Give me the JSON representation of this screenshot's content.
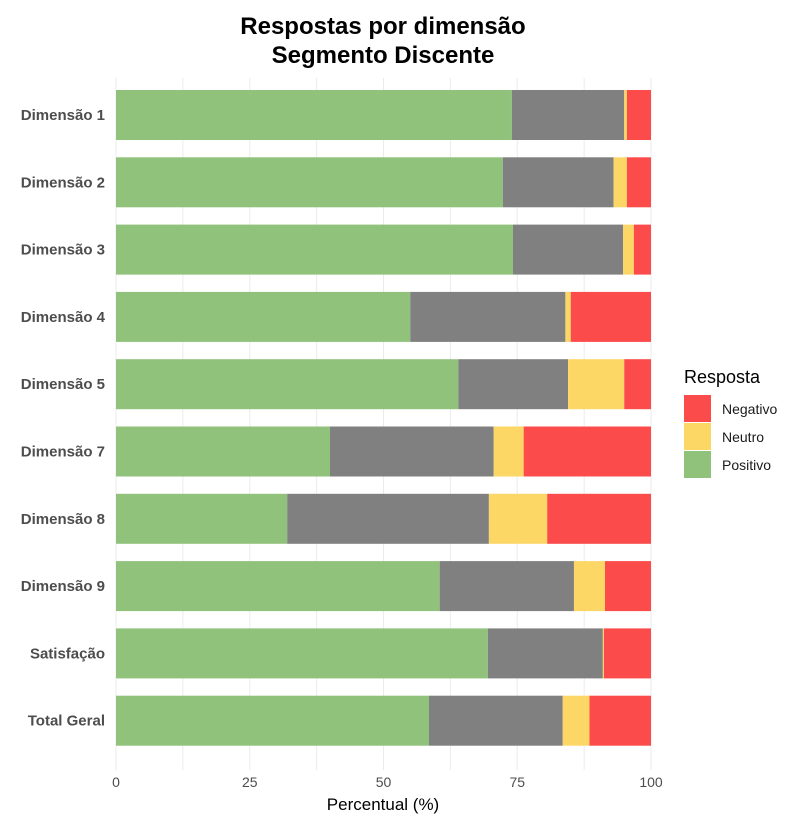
{
  "chart_data": {
    "type": "bar",
    "orientation": "horizontal",
    "stacked": true,
    "title": [
      "Respostas por dimensão",
      "Segmento Discente"
    ],
    "xlabel": "Percentual (%)",
    "ylabel": "",
    "xlim": [
      0,
      100
    ],
    "xticks": [
      "0",
      "25",
      "50",
      "75",
      "100"
    ],
    "grid": true,
    "legend_placement": "right",
    "legend_title": "Resposta",
    "categories": [
      "Dimensão 1",
      "Dimensão 2",
      "Dimensão 3",
      "Dimensão 4",
      "Dimensão 5",
      "Dimensão 7",
      "Dimensão 8",
      "Dimensão 9",
      "Satisfação",
      "Total Geral"
    ],
    "series": [
      {
        "values": [
          74,
          72.3,
          74.2,
          55,
          64,
          40,
          32,
          60.5,
          69.5,
          58.5
        ],
        "color": "#90c27c"
      },
      {
        "values": [
          21,
          20.7,
          20.6,
          29,
          20.5,
          30.6,
          37.7,
          25.1,
          21.5,
          25
        ],
        "color": "#808080"
      },
      {
        "name": "Neutro",
        "values": [
          0.5,
          2.5,
          2,
          1,
          10.5,
          5.6,
          10.9,
          5.8,
          0.2,
          5
        ],
        "color": "#fdd765"
      },
      {
        "name": "Negativo",
        "values": [
          4.5,
          4.5,
          3.2,
          15,
          5,
          23.8,
          19.4,
          8.6,
          8.8,
          11.5
        ],
        "color": "#fc4b4b"
      }
    ],
    "legend": [
      {
        "name": "Negativo",
        "color": "#fc4b4b"
      },
      {
        "name": "Neutro",
        "color": "#fdd765"
      },
      {
        "name": "Positivo",
        "color": "#90c27c"
      }
    ]
  }
}
